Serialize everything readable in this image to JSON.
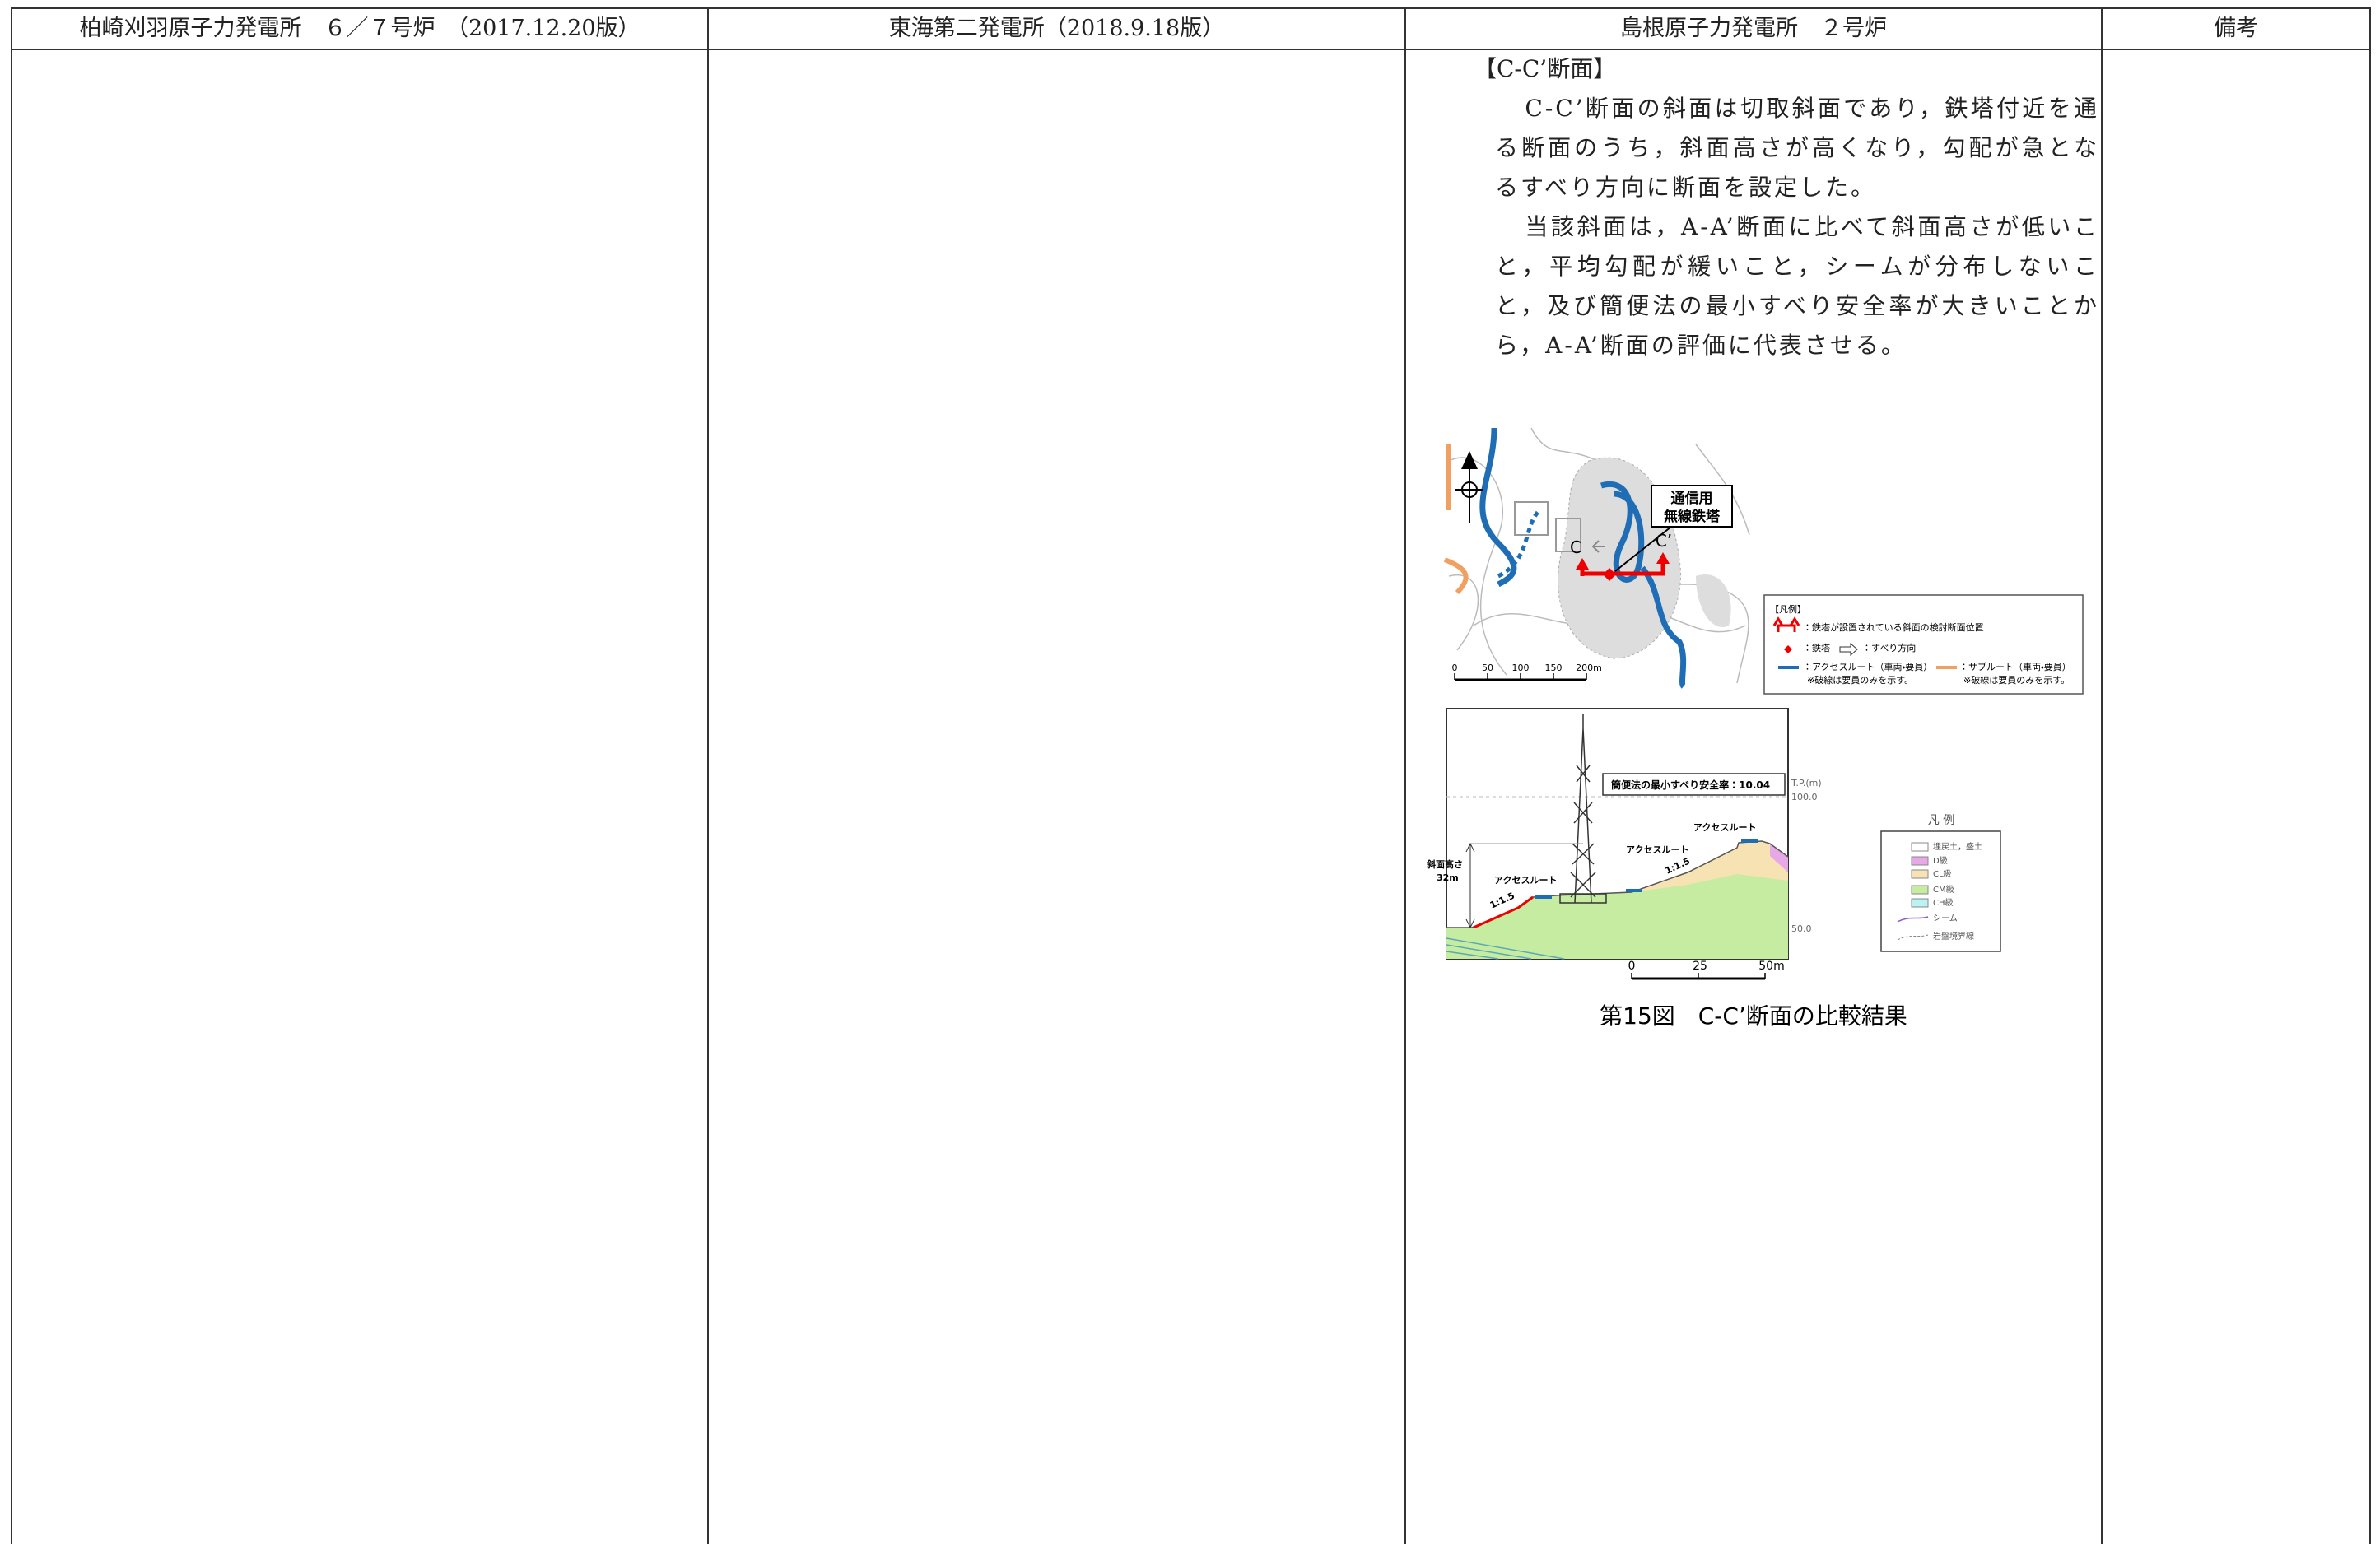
{
  "header": {
    "columns": [
      "柏崎刈羽原子力発電所　６／７号炉　（2017.12.20版）",
      "東海第二発電所（2018.9.18版）",
      "島根原子力発電所　２号炉",
      "備考"
    ]
  },
  "section": {
    "heading": "【C-C’断面】",
    "paragraphs": [
      "C-C’断面の斜面は切取斜面であり，鉄塔付近を通る断面のうち，斜面高さが高くなり，勾配が急となるすべり方向に断面を設定した。",
      "当該斜面は，A-A’断面に比べて斜面高さが低いこと，平均勾配が緩いこと，シームが分布しないこと，及び簡便法の最小すべり安全率が大きいことから，A-A’断面の評価に代表させる。"
    ]
  },
  "figure": {
    "map": {
      "tower_label": [
        "通信用",
        "無線鉄塔"
      ],
      "section_marks": [
        "C",
        "C’"
      ],
      "scale_labels": [
        "0",
        "50",
        "100",
        "150",
        "200m"
      ],
      "legend": {
        "title": "【凡例】",
        "items": [
          "：鉄塔が設置されている斜面の検討断面位置",
          "：鉄塔",
          "：すべり方向",
          "：アクセスルート（車両・要員）",
          "※破線は要員のみを示す。",
          "：サブルート（車両・要員）",
          "※破線は要員のみを示す。"
        ]
      }
    },
    "cross_section": {
      "safety_factor": "簡便法の最小すべり安全率：10.04",
      "axis_unit": "T.P.(m)",
      "elevation_labels": [
        "100.0",
        "50.0"
      ],
      "access_route_labels": [
        "アクセスルート",
        "アクセスルート",
        "アクセスルート"
      ],
      "slope_height": [
        "斜面高さ",
        "32m"
      ],
      "gradient_labels": [
        "1:1.5",
        "1:1.5"
      ],
      "scale_labels": [
        "0",
        "25",
        "50m"
      ],
      "legend": {
        "title": "凡 例",
        "items": [
          "埋戻土，盛土",
          "D級",
          "CL級",
          "CM級",
          "CH級",
          "シーム",
          "岩盤境界線"
        ]
      }
    },
    "caption": "第15図　C-C’断面の比較結果"
  }
}
